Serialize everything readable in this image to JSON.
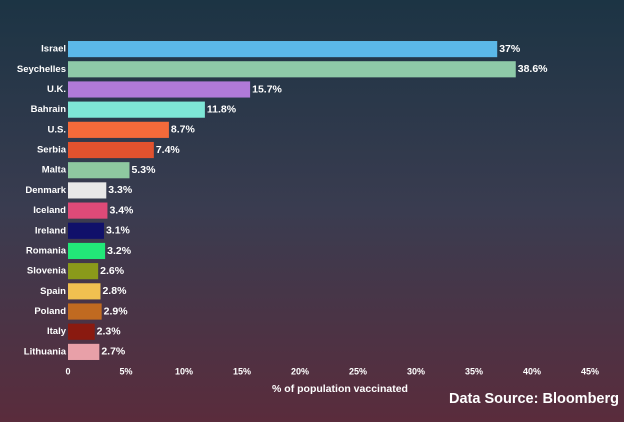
{
  "chart_data": {
    "type": "bar",
    "orientation": "horizontal",
    "categories": [
      "Israel",
      "Seychelles",
      "U.K.",
      "Bahrain",
      "U.S.",
      "Serbia",
      "Malta",
      "Denmark",
      "Iceland",
      "Ireland",
      "Romania",
      "Slovenia",
      "Spain",
      "Poland",
      "Italy",
      "Lithuania"
    ],
    "values": [
      37,
      38.6,
      15.7,
      11.8,
      8.7,
      7.4,
      5.3,
      3.3,
      3.4,
      3.1,
      3.2,
      2.6,
      2.8,
      2.9,
      2.3,
      2.7
    ],
    "value_labels": [
      "37%",
      "38.6%",
      "15.7%",
      "11.8%",
      "8.7%",
      "7.4%",
      "5.3%",
      "3.3%",
      "3.4%",
      "3.1%",
      "3.2%",
      "2.6%",
      "2.8%",
      "2.9%",
      "2.3%",
      "2.7%"
    ],
    "colors": [
      "#5bb8e8",
      "#8ecaa8",
      "#b07ad8",
      "#7ee6d6",
      "#f46a3a",
      "#e2522e",
      "#8ec8a0",
      "#e8e8e8",
      "#de4a78",
      "#10106a",
      "#22e878",
      "#8a9a1a",
      "#f0c050",
      "#c06a20",
      "#8a1a10",
      "#e8a0a8"
    ],
    "xlim": [
      0,
      45
    ],
    "xticks": [
      0,
      {
        "value": 5,
        "label": "5%"
      },
      {
        "value": 10,
        "label": "10%"
      },
      {
        "value": 15,
        "label": "15%"
      },
      {
        "value": 20,
        "label": "20%"
      },
      {
        "value": 25,
        "label": "25%"
      },
      {
        "value": 30,
        "label": "30%"
      },
      {
        "value": 35,
        "label": "35%"
      },
      {
        "value": 40,
        "label": "40%"
      },
      {
        "value": 45,
        "label": "45%"
      }
    ],
    "xlabel": "% of population vaccinated",
    "annotation": "Data Source: Bloomberg"
  }
}
